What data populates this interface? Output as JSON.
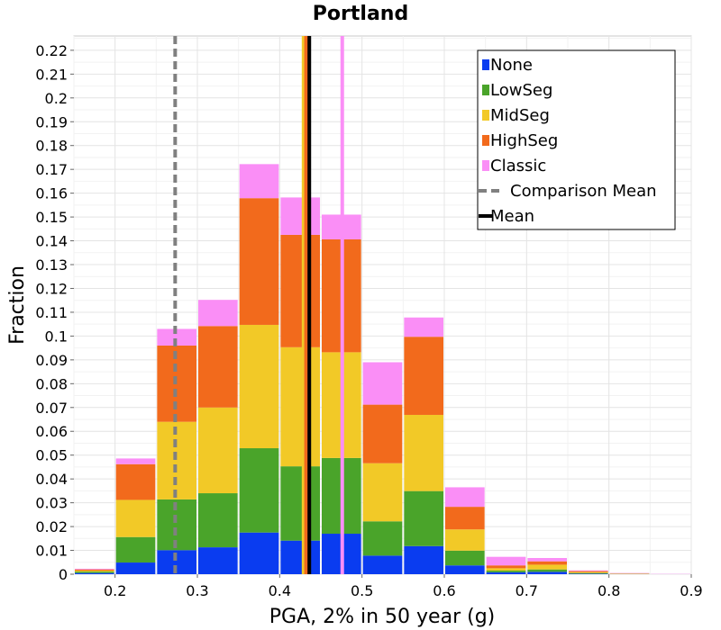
{
  "chart_data": {
    "type": "bar",
    "stacked": true,
    "title": "Portland",
    "xlabel": "PGA, 2% in 50 year (g)",
    "ylabel": "Fraction",
    "xlim": [
      0.15,
      0.9
    ],
    "ylim": [
      0,
      0.226
    ],
    "xticks": [
      0.2,
      0.3,
      0.4,
      0.5,
      0.6,
      0.7,
      0.8,
      0.9
    ],
    "xtick_labels": [
      "0.2",
      "0.3",
      "0.4",
      "0.5",
      "0.6",
      "0.7",
      "0.8",
      "0.9"
    ],
    "yticks": [
      0,
      0.01,
      0.02,
      0.03,
      0.04,
      0.05,
      0.06,
      0.07,
      0.08,
      0.09,
      0.1,
      0.11,
      0.12,
      0.13,
      0.14,
      0.15,
      0.16,
      0.17,
      0.18,
      0.19,
      0.2,
      0.21,
      0.22
    ],
    "ytick_labels": [
      "0",
      "0.01",
      "0.02",
      "0.03",
      "0.04",
      "0.05",
      "0.06",
      "0.07",
      "0.08",
      "0.09",
      "0.1",
      "0.11",
      "0.12",
      "0.13",
      "0.14",
      "0.15",
      "0.16",
      "0.17",
      "0.18",
      "0.19",
      "0.2",
      "0.21",
      "0.22"
    ],
    "grid": true,
    "legend_position": "top-right",
    "bin_width": 0.05,
    "bin_centers": [
      0.175,
      0.225,
      0.275,
      0.325,
      0.375,
      0.425,
      0.475,
      0.525,
      0.575,
      0.625,
      0.675,
      0.725,
      0.775,
      0.825,
      0.875
    ],
    "series": [
      {
        "name": "None",
        "color": "#0a3cf0",
        "values": [
          0.0005,
          0.0049,
          0.0101,
          0.0113,
          0.0175,
          0.0141,
          0.017,
          0.0078,
          0.0118,
          0.0037,
          0.0008,
          0.001,
          0.0002,
          0.0,
          0.0
        ]
      },
      {
        "name": "LowSeg",
        "color": "#4aa42a",
        "values": [
          0.0006,
          0.0107,
          0.0213,
          0.0227,
          0.0354,
          0.0312,
          0.0318,
          0.0144,
          0.0231,
          0.0062,
          0.0007,
          0.001,
          0.0003,
          0.0001,
          0.0
        ]
      },
      {
        "name": "MidSeg",
        "color": "#f2c927",
        "values": [
          0.0004,
          0.0156,
          0.0326,
          0.036,
          0.0518,
          0.05,
          0.0444,
          0.0244,
          0.032,
          0.0089,
          0.001,
          0.002,
          0.0004,
          0.0001,
          0.0
        ]
      },
      {
        "name": "HighSeg",
        "color": "#f26a1c",
        "values": [
          0.0005,
          0.015,
          0.032,
          0.0342,
          0.0532,
          0.0472,
          0.0474,
          0.0246,
          0.0328,
          0.0095,
          0.0012,
          0.0014,
          0.0004,
          0.0001,
          0.0
        ]
      },
      {
        "name": "Classic",
        "color": "#fa8ef6",
        "values": [
          0.0003,
          0.0024,
          0.007,
          0.011,
          0.0143,
          0.0157,
          0.0104,
          0.0178,
          0.0081,
          0.0082,
          0.0036,
          0.0014,
          0.0003,
          0.0002,
          0.0001
        ]
      }
    ],
    "vertical_lines": [
      {
        "name": "Comparison Mean",
        "x": 0.273,
        "color": "#808080",
        "style": "dashed"
      },
      {
        "name": "MidSeg mean",
        "x": 0.429,
        "color": "#f2c927",
        "style": "solid"
      },
      {
        "name": "HighSeg mean",
        "x": 0.432,
        "color": "#f26a1c",
        "style": "solid"
      },
      {
        "name": "Classic mean",
        "x": 0.476,
        "color": "#fa8ef6",
        "style": "solid"
      },
      {
        "name": "Mean",
        "x": 0.436,
        "color": "#000000",
        "style": "solid"
      }
    ],
    "legend": [
      {
        "label": "None",
        "color": "#0a3cf0",
        "kind": "box"
      },
      {
        "label": "LowSeg",
        "color": "#4aa42a",
        "kind": "box"
      },
      {
        "label": "MidSeg",
        "color": "#f2c927",
        "kind": "box"
      },
      {
        "label": "HighSeg",
        "color": "#f26a1c",
        "kind": "box"
      },
      {
        "label": "Classic",
        "color": "#fa8ef6",
        "kind": "box"
      },
      {
        "label": "Comparison Mean",
        "color": "#808080",
        "kind": "dashed"
      },
      {
        "label": "Mean",
        "color": "#000000",
        "kind": "line"
      }
    ]
  }
}
